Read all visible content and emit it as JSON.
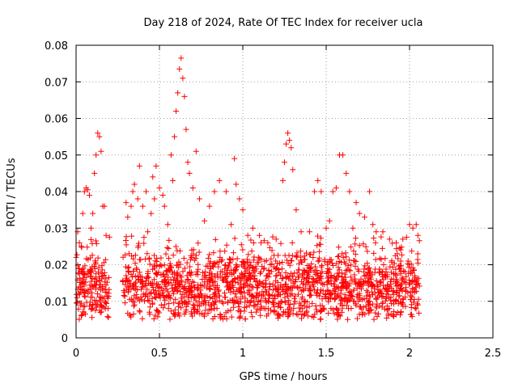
{
  "chart_data": {
    "type": "scatter",
    "title": "Day 218 of 2024, Rate Of TEC Index for receiver ucla",
    "xlabel": "GPS time / hours",
    "ylabel": "ROTI / TECUs",
    "xlim": [
      0,
      2.5
    ],
    "ylim": [
      0,
      0.08
    ],
    "x_ticks": [
      "0",
      "0.5",
      "1",
      "1.5",
      "2",
      "2.5"
    ],
    "y_ticks": [
      "0",
      "0.01",
      "0.02",
      "0.03",
      "0.04",
      "0.05",
      "0.06",
      "0.07",
      "0.08"
    ],
    "grid": true,
    "marker": "+",
    "series": [
      {
        "name": "ROTI",
        "color": "#ff0000",
        "cluster": {
          "segments": [
            [
              0.0,
              0.2
            ],
            [
              0.28,
              2.06
            ]
          ],
          "typical_range": [
            0.006,
            0.025
          ],
          "dense_center": 0.014
        },
        "points": [
          [
            0.01,
            0.029
          ],
          [
            0.02,
            0.026
          ],
          [
            0.04,
            0.034
          ],
          [
            0.05,
            0.04
          ],
          [
            0.06,
            0.041
          ],
          [
            0.07,
            0.0405
          ],
          [
            0.08,
            0.039
          ],
          [
            0.09,
            0.03
          ],
          [
            0.1,
            0.034
          ],
          [
            0.11,
            0.045
          ],
          [
            0.12,
            0.05
          ],
          [
            0.13,
            0.056
          ],
          [
            0.14,
            0.055
          ],
          [
            0.15,
            0.051
          ],
          [
            0.16,
            0.036
          ],
          [
            0.17,
            0.036
          ],
          [
            0.18,
            0.028
          ],
          [
            0.3,
            0.037
          ],
          [
            0.31,
            0.033
          ],
          [
            0.33,
            0.036
          ],
          [
            0.34,
            0.04
          ],
          [
            0.35,
            0.042
          ],
          [
            0.37,
            0.038
          ],
          [
            0.38,
            0.047
          ],
          [
            0.4,
            0.036
          ],
          [
            0.42,
            0.04
          ],
          [
            0.43,
            0.029
          ],
          [
            0.45,
            0.034
          ],
          [
            0.46,
            0.044
          ],
          [
            0.47,
            0.038
          ],
          [
            0.48,
            0.047
          ],
          [
            0.5,
            0.041
          ],
          [
            0.52,
            0.039
          ],
          [
            0.53,
            0.036
          ],
          [
            0.55,
            0.031
          ],
          [
            0.57,
            0.05
          ],
          [
            0.58,
            0.043
          ],
          [
            0.59,
            0.055
          ],
          [
            0.6,
            0.062
          ],
          [
            0.61,
            0.067
          ],
          [
            0.62,
            0.0735
          ],
          [
            0.63,
            0.0765
          ],
          [
            0.64,
            0.071
          ],
          [
            0.65,
            0.066
          ],
          [
            0.66,
            0.057
          ],
          [
            0.67,
            0.048
          ],
          [
            0.68,
            0.045
          ],
          [
            0.7,
            0.041
          ],
          [
            0.72,
            0.051
          ],
          [
            0.74,
            0.038
          ],
          [
            0.77,
            0.032
          ],
          [
            0.8,
            0.036
          ],
          [
            0.83,
            0.04
          ],
          [
            0.86,
            0.043
          ],
          [
            0.9,
            0.04
          ],
          [
            0.93,
            0.031
          ],
          [
            0.95,
            0.049
          ],
          [
            0.96,
            0.042
          ],
          [
            0.98,
            0.038
          ],
          [
            1.0,
            0.035
          ],
          [
            1.03,
            0.028
          ],
          [
            1.06,
            0.03
          ],
          [
            1.1,
            0.028
          ],
          [
            1.15,
            0.026
          ],
          [
            1.2,
            0.027
          ],
          [
            1.24,
            0.043
          ],
          [
            1.25,
            0.048
          ],
          [
            1.26,
            0.053
          ],
          [
            1.27,
            0.056
          ],
          [
            1.28,
            0.054
          ],
          [
            1.29,
            0.052
          ],
          [
            1.3,
            0.046
          ],
          [
            1.32,
            0.035
          ],
          [
            1.35,
            0.029
          ],
          [
            1.4,
            0.029
          ],
          [
            1.43,
            0.04
          ],
          [
            1.45,
            0.043
          ],
          [
            1.47,
            0.04
          ],
          [
            1.5,
            0.03
          ],
          [
            1.52,
            0.032
          ],
          [
            1.54,
            0.04
          ],
          [
            1.56,
            0.041
          ],
          [
            1.58,
            0.05
          ],
          [
            1.6,
            0.05
          ],
          [
            1.62,
            0.045
          ],
          [
            1.64,
            0.04
          ],
          [
            1.66,
            0.03
          ],
          [
            1.68,
            0.037
          ],
          [
            1.7,
            0.034
          ],
          [
            1.73,
            0.033
          ],
          [
            1.76,
            0.04
          ],
          [
            1.78,
            0.031
          ],
          [
            1.8,
            0.029
          ],
          [
            1.84,
            0.029
          ],
          [
            1.88,
            0.027
          ],
          [
            1.92,
            0.026
          ],
          [
            1.96,
            0.027
          ],
          [
            2.0,
            0.031
          ],
          [
            2.02,
            0.03
          ],
          [
            2.04,
            0.031
          ],
          [
            2.05,
            0.028
          ],
          [
            2.05,
            0.009
          ]
        ]
      }
    ]
  }
}
